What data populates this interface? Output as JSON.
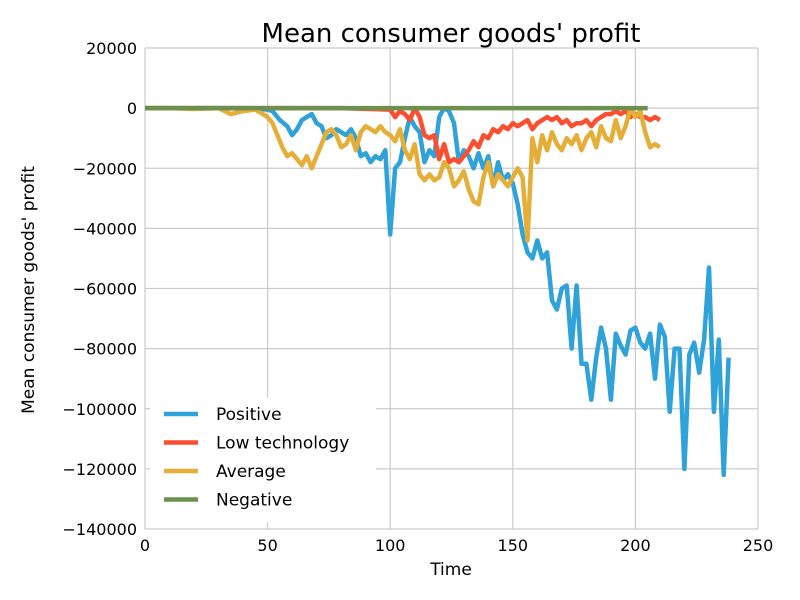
{
  "chart_data": {
    "type": "line",
    "title": "Mean consumer goods' profit",
    "xlabel": "Time",
    "ylabel": "Mean consumer goods' profit",
    "xlim": [
      0,
      250
    ],
    "ylim": [
      -140000,
      20000
    ],
    "xticks": [
      0,
      50,
      100,
      150,
      200,
      250
    ],
    "yticks": [
      20000,
      0,
      -20000,
      -40000,
      -60000,
      -80000,
      -100000,
      -120000,
      -140000
    ],
    "xtick_labels": [
      "0",
      "50",
      "100",
      "150",
      "200",
      "250"
    ],
    "ytick_labels": [
      "20000",
      "0",
      "−20000",
      "−40000",
      "−60000",
      "−80000",
      "−100000",
      "−120000",
      "−140000"
    ],
    "grid": true,
    "legend_position": "lower-left",
    "series": [
      {
        "name": "Positive",
        "color": "#30a2da",
        "points": [
          [
            0,
            0
          ],
          [
            10,
            0
          ],
          [
            20,
            0
          ],
          [
            30,
            0
          ],
          [
            40,
            0
          ],
          [
            45,
            -300
          ],
          [
            50,
            -500
          ],
          [
            52,
            -1000
          ],
          [
            55,
            -4000
          ],
          [
            58,
            -6000
          ],
          [
            60,
            -9000
          ],
          [
            62,
            -7000
          ],
          [
            64,
            -4000
          ],
          [
            66,
            -3000
          ],
          [
            68,
            -2000
          ],
          [
            70,
            -5000
          ],
          [
            72,
            -6000
          ],
          [
            74,
            -10000
          ],
          [
            76,
            -9000
          ],
          [
            78,
            -7000
          ],
          [
            80,
            -8000
          ],
          [
            82,
            -9000
          ],
          [
            84,
            -7000
          ],
          [
            86,
            -10000
          ],
          [
            88,
            -16000
          ],
          [
            90,
            -15000
          ],
          [
            92,
            -18000
          ],
          [
            94,
            -16000
          ],
          [
            96,
            -17000
          ],
          [
            98,
            -14000
          ],
          [
            100,
            -42000
          ],
          [
            102,
            -20000
          ],
          [
            104,
            -18000
          ],
          [
            106,
            -10000
          ],
          [
            108,
            -3000
          ],
          [
            110,
            -6000
          ],
          [
            112,
            -8000
          ],
          [
            114,
            -18000
          ],
          [
            116,
            -14000
          ],
          [
            118,
            -16000
          ],
          [
            120,
            -3000
          ],
          [
            122,
            0
          ],
          [
            124,
            -1000
          ],
          [
            126,
            -5000
          ],
          [
            128,
            -18000
          ],
          [
            130,
            -14000
          ],
          [
            132,
            -16000
          ],
          [
            134,
            -20000
          ],
          [
            136,
            -15000
          ],
          [
            138,
            -20000
          ],
          [
            140,
            -16000
          ],
          [
            142,
            -26000
          ],
          [
            144,
            -18000
          ],
          [
            146,
            -24000
          ],
          [
            148,
            -22000
          ],
          [
            150,
            -25000
          ],
          [
            152,
            -32000
          ],
          [
            154,
            -42000
          ],
          [
            156,
            -48000
          ],
          [
            158,
            -50000
          ],
          [
            160,
            -44000
          ],
          [
            162,
            -50000
          ],
          [
            164,
            -48000
          ],
          [
            166,
            -64000
          ],
          [
            168,
            -67000
          ],
          [
            170,
            -60000
          ],
          [
            172,
            -59000
          ],
          [
            174,
            -80000
          ],
          [
            176,
            -59000
          ],
          [
            178,
            -85000
          ],
          [
            180,
            -85000
          ],
          [
            182,
            -97000
          ],
          [
            184,
            -83000
          ],
          [
            186,
            -73000
          ],
          [
            188,
            -80000
          ],
          [
            190,
            -97000
          ],
          [
            192,
            -75000
          ],
          [
            194,
            -79000
          ],
          [
            196,
            -82000
          ],
          [
            198,
            -74000
          ],
          [
            200,
            -73000
          ],
          [
            202,
            -78000
          ],
          [
            204,
            -80000
          ],
          [
            206,
            -75000
          ],
          [
            208,
            -90000
          ],
          [
            210,
            -72000
          ],
          [
            212,
            -76000
          ],
          [
            214,
            -101000
          ],
          [
            216,
            -80000
          ],
          [
            218,
            -80000
          ],
          [
            220,
            -120000
          ],
          [
            222,
            -82000
          ],
          [
            224,
            -78000
          ],
          [
            226,
            -88000
          ],
          [
            228,
            -77000
          ],
          [
            230,
            -53000
          ],
          [
            232,
            -101000
          ],
          [
            234,
            -77000
          ],
          [
            236,
            -122000
          ],
          [
            238,
            -83000
          ]
        ]
      },
      {
        "name": "Low technology",
        "color": "#fc4f30",
        "points": [
          [
            0,
            0
          ],
          [
            20,
            0
          ],
          [
            40,
            0
          ],
          [
            60,
            0
          ],
          [
            80,
            0
          ],
          [
            100,
            -500
          ],
          [
            102,
            -3000
          ],
          [
            104,
            -1000
          ],
          [
            106,
            -2000
          ],
          [
            108,
            -4000
          ],
          [
            110,
            0
          ],
          [
            112,
            -3000
          ],
          [
            114,
            -9000
          ],
          [
            116,
            -10000
          ],
          [
            118,
            -9000
          ],
          [
            120,
            -17000
          ],
          [
            122,
            -12000
          ],
          [
            124,
            -18000
          ],
          [
            126,
            -17000
          ],
          [
            128,
            -18000
          ],
          [
            130,
            -16000
          ],
          [
            132,
            -14000
          ],
          [
            134,
            -11000
          ],
          [
            136,
            -13000
          ],
          [
            138,
            -9000
          ],
          [
            140,
            -10000
          ],
          [
            142,
            -7000
          ],
          [
            144,
            -8000
          ],
          [
            146,
            -6000
          ],
          [
            148,
            -7000
          ],
          [
            150,
            -5000
          ],
          [
            152,
            -6000
          ],
          [
            154,
            -5000
          ],
          [
            156,
            -4000
          ],
          [
            158,
            -7000
          ],
          [
            160,
            -5000
          ],
          [
            162,
            -4000
          ],
          [
            164,
            -3000
          ],
          [
            166,
            -4000
          ],
          [
            168,
            -3000
          ],
          [
            170,
            -5000
          ],
          [
            172,
            -4000
          ],
          [
            174,
            -6000
          ],
          [
            176,
            -5000
          ],
          [
            178,
            -5000
          ],
          [
            180,
            -4000
          ],
          [
            182,
            -6000
          ],
          [
            184,
            -4000
          ],
          [
            186,
            -3000
          ],
          [
            188,
            -2000
          ],
          [
            190,
            -2000
          ],
          [
            192,
            -1000
          ],
          [
            194,
            -2000
          ],
          [
            196,
            -1000
          ],
          [
            198,
            -3000
          ],
          [
            200,
            -2000
          ],
          [
            202,
            -3000
          ],
          [
            204,
            -3000
          ],
          [
            206,
            -4000
          ],
          [
            208,
            -3000
          ],
          [
            210,
            -4000
          ]
        ]
      },
      {
        "name": "Average",
        "color": "#e5ae38",
        "points": [
          [
            0,
            0
          ],
          [
            10,
            0
          ],
          [
            20,
            -300
          ],
          [
            30,
            0
          ],
          [
            35,
            -2000
          ],
          [
            40,
            -1000
          ],
          [
            45,
            -500
          ],
          [
            50,
            -3000
          ],
          [
            52,
            -5000
          ],
          [
            54,
            -9000
          ],
          [
            56,
            -13000
          ],
          [
            58,
            -16000
          ],
          [
            60,
            -15000
          ],
          [
            62,
            -17000
          ],
          [
            64,
            -19000
          ],
          [
            66,
            -16000
          ],
          [
            68,
            -20000
          ],
          [
            70,
            -16000
          ],
          [
            72,
            -12000
          ],
          [
            74,
            -8000
          ],
          [
            76,
            -7000
          ],
          [
            78,
            -9000
          ],
          [
            80,
            -13000
          ],
          [
            82,
            -12000
          ],
          [
            84,
            -9000
          ],
          [
            86,
            -14000
          ],
          [
            88,
            -8000
          ],
          [
            90,
            -6000
          ],
          [
            92,
            -7000
          ],
          [
            94,
            -8000
          ],
          [
            96,
            -6000
          ],
          [
            98,
            -8000
          ],
          [
            100,
            -9000
          ],
          [
            102,
            -11000
          ],
          [
            104,
            -7000
          ],
          [
            106,
            -14000
          ],
          [
            108,
            -17000
          ],
          [
            110,
            -12000
          ],
          [
            112,
            -22000
          ],
          [
            114,
            -24000
          ],
          [
            116,
            -22000
          ],
          [
            118,
            -24000
          ],
          [
            120,
            -23000
          ],
          [
            122,
            -18000
          ],
          [
            124,
            -20000
          ],
          [
            126,
            -26000
          ],
          [
            128,
            -24000
          ],
          [
            130,
            -21000
          ],
          [
            132,
            -27000
          ],
          [
            134,
            -31000
          ],
          [
            136,
            -32000
          ],
          [
            138,
            -23000
          ],
          [
            140,
            -18000
          ],
          [
            142,
            -26000
          ],
          [
            144,
            -22000
          ],
          [
            146,
            -24000
          ],
          [
            148,
            -26000
          ],
          [
            150,
            -23000
          ],
          [
            152,
            -20000
          ],
          [
            154,
            -23000
          ],
          [
            156,
            -44000
          ],
          [
            158,
            -10000
          ],
          [
            160,
            -18000
          ],
          [
            162,
            -9000
          ],
          [
            164,
            -14000
          ],
          [
            166,
            -8000
          ],
          [
            168,
            -12000
          ],
          [
            170,
            -14000
          ],
          [
            172,
            -10000
          ],
          [
            174,
            -12000
          ],
          [
            176,
            -9000
          ],
          [
            178,
            -14000
          ],
          [
            180,
            -10000
          ],
          [
            182,
            -8000
          ],
          [
            184,
            -13000
          ],
          [
            186,
            -6000
          ],
          [
            188,
            -10000
          ],
          [
            190,
            -11000
          ],
          [
            192,
            -4000
          ],
          [
            194,
            -10000
          ],
          [
            196,
            -6000
          ],
          [
            198,
            0
          ],
          [
            200,
            -3000
          ],
          [
            202,
            -1000
          ],
          [
            204,
            -8000
          ],
          [
            206,
            -13000
          ],
          [
            208,
            -12000
          ],
          [
            210,
            -13000
          ]
        ]
      },
      {
        "name": "Negative",
        "color": "#6d904f",
        "points": [
          [
            0,
            0
          ],
          [
            20,
            0
          ],
          [
            40,
            0
          ],
          [
            60,
            0
          ],
          [
            80,
            0
          ],
          [
            100,
            0
          ],
          [
            120,
            0
          ],
          [
            140,
            0
          ],
          [
            160,
            0
          ],
          [
            180,
            0
          ],
          [
            200,
            0
          ],
          [
            205,
            0
          ]
        ]
      }
    ]
  }
}
